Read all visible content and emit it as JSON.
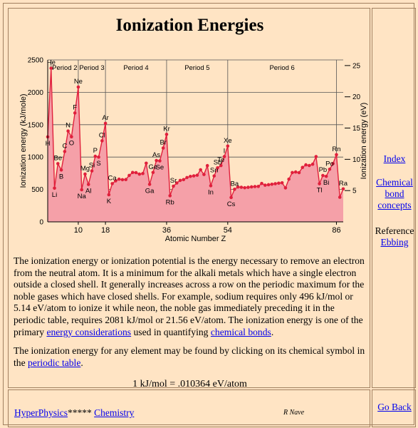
{
  "page": {
    "title": "Ionization Energies"
  },
  "chart_data": {
    "type": "line",
    "xlabel": "Atomic Number Z",
    "ylabel": "Ionization energy (kJ/mole)",
    "y2label": "Ionization energy (eV)",
    "xlim": [
      1,
      88
    ],
    "ylim": [
      0,
      2500
    ],
    "y2lim": [
      0,
      25.9
    ],
    "y_ticks": [
      0,
      500,
      1000,
      1500,
      2000,
      2500
    ],
    "y2_ticks": [
      5,
      10,
      15,
      20,
      25
    ],
    "x_ticks": [
      10,
      18,
      36,
      54,
      86
    ],
    "period_lines": [
      2,
      10,
      18,
      36,
      54,
      86
    ],
    "periods": [
      "Period 2",
      "Period 3",
      "Period 4",
      "Period 5",
      "Period 6"
    ],
    "fill_color": "#F5A0A8",
    "line_color": "#E0203C",
    "points": [
      [
        1,
        1312
      ],
      [
        2,
        2372
      ],
      [
        3,
        520
      ],
      [
        4,
        899
      ],
      [
        5,
        801
      ],
      [
        6,
        1086
      ],
      [
        7,
        1402
      ],
      [
        8,
        1314
      ],
      [
        9,
        1681
      ],
      [
        10,
        2081
      ],
      [
        11,
        496
      ],
      [
        12,
        738
      ],
      [
        13,
        578
      ],
      [
        14,
        786
      ],
      [
        15,
        1012
      ],
      [
        16,
        1000
      ],
      [
        17,
        1251
      ],
      [
        18,
        1521
      ],
      [
        19,
        419
      ],
      [
        20,
        590
      ],
      [
        21,
        633
      ],
      [
        22,
        659
      ],
      [
        23,
        651
      ],
      [
        24,
        653
      ],
      [
        25,
        717
      ],
      [
        26,
        762
      ],
      [
        27,
        760
      ],
      [
        28,
        737
      ],
      [
        29,
        746
      ],
      [
        30,
        906
      ],
      [
        31,
        579
      ],
      [
        32,
        762
      ],
      [
        33,
        947
      ],
      [
        34,
        941
      ],
      [
        35,
        1140
      ],
      [
        36,
        1351
      ],
      [
        37,
        403
      ],
      [
        38,
        550
      ],
      [
        39,
        600
      ],
      [
        40,
        640
      ],
      [
        41,
        652
      ],
      [
        42,
        684
      ],
      [
        43,
        702
      ],
      [
        44,
        710
      ],
      [
        45,
        720
      ],
      [
        46,
        804
      ],
      [
        47,
        731
      ],
      [
        48,
        868
      ],
      [
        49,
        558
      ],
      [
        50,
        709
      ],
      [
        51,
        834
      ],
      [
        52,
        869
      ],
      [
        53,
        1008
      ],
      [
        54,
        1170
      ],
      [
        55,
        376
      ],
      [
        56,
        503
      ],
      [
        57,
        538
      ],
      [
        58,
        534
      ],
      [
        59,
        527
      ],
      [
        60,
        533
      ],
      [
        61,
        540
      ],
      [
        62,
        545
      ],
      [
        63,
        547
      ],
      [
        64,
        593
      ],
      [
        65,
        566
      ],
      [
        66,
        573
      ],
      [
        67,
        581
      ],
      [
        68,
        589
      ],
      [
        69,
        597
      ],
      [
        70,
        603
      ],
      [
        71,
        524
      ],
      [
        72,
        659
      ],
      [
        73,
        761
      ],
      [
        74,
        770
      ],
      [
        75,
        760
      ],
      [
        76,
        840
      ],
      [
        77,
        880
      ],
      [
        78,
        870
      ],
      [
        79,
        890
      ],
      [
        80,
        1007
      ],
      [
        81,
        589
      ],
      [
        82,
        716
      ],
      [
        83,
        703
      ],
      [
        84,
        812
      ],
      [
        85,
        900
      ],
      [
        86,
        1037
      ],
      [
        87,
        380
      ],
      [
        88,
        509
      ]
    ],
    "labels": [
      {
        "s": "He",
        "z": 2
      },
      {
        "s": "H",
        "z": 1
      },
      {
        "s": "Li",
        "z": 3
      },
      {
        "s": "Be",
        "z": 4
      },
      {
        "s": "B",
        "z": 5
      },
      {
        "s": "C",
        "z": 6
      },
      {
        "s": "N",
        "z": 7
      },
      {
        "s": "O",
        "z": 8
      },
      {
        "s": "F",
        "z": 9
      },
      {
        "s": "Ne",
        "z": 10
      },
      {
        "s": "Na",
        "z": 11
      },
      {
        "s": "Mg",
        "z": 12
      },
      {
        "s": "Al",
        "z": 13
      },
      {
        "s": "Si",
        "z": 14
      },
      {
        "s": "P",
        "z": 15
      },
      {
        "s": "S",
        "z": 16
      },
      {
        "s": "Cl",
        "z": 17
      },
      {
        "s": "Ar",
        "z": 18
      },
      {
        "s": "K",
        "z": 19
      },
      {
        "s": "Ca",
        "z": 20
      },
      {
        "s": "Ga",
        "z": 31
      },
      {
        "s": "Ge",
        "z": 32
      },
      {
        "s": "As",
        "z": 33
      },
      {
        "s": "Se",
        "z": 34
      },
      {
        "s": "Br",
        "z": 35
      },
      {
        "s": "Kr",
        "z": 36
      },
      {
        "s": "Rb",
        "z": 37
      },
      {
        "s": "Sr",
        "z": 38
      },
      {
        "s": "In",
        "z": 49
      },
      {
        "s": "Sn",
        "z": 50
      },
      {
        "s": "Sb",
        "z": 51
      },
      {
        "s": "Te",
        "z": 52
      },
      {
        "s": "I",
        "z": 53
      },
      {
        "s": "Xe",
        "z": 54
      },
      {
        "s": "Cs",
        "z": 55
      },
      {
        "s": "Ba",
        "z": 56
      },
      {
        "s": "Tl",
        "z": 81
      },
      {
        "s": "Pb",
        "z": 82
      },
      {
        "s": "Bi",
        "z": 83
      },
      {
        "s": "Po",
        "z": 84
      },
      {
        "s": "Rn",
        "z": 86
      },
      {
        "s": "Ra",
        "z": 88
      }
    ]
  },
  "text": {
    "p1_a": "The ionization energy or ionization potential is the energy necessary to remove an electron from the neutral atom. It is a minimum for the alkali metals which have a single electron outside a closed shell. It generally increases across a row on the periodic maximum for the noble gases which have closed shells. For example, sodium requires only 496 kJ/mol or 5.14 eV/atom to ionize it while neon, the noble gas immediately preceding it in the periodic table, requires 2081 kJ/mol or 21.56 eV/atom. The ionization energy is one of the primary ",
    "link_energy": "energy considerations",
    "p1_b": " used in quantifying ",
    "link_bonds": "chemical bonds",
    "p1_c": ".",
    "p2_a": "The ionization energy for any element may be found by clicking on its chemical symbol in the ",
    "link_periodic": "periodic table",
    "p2_b": ".",
    "conversion": "1 kJ/mol = .010364 eV/atom"
  },
  "sidebar": {
    "index": "Index",
    "bond_concepts": "Chemical bond concepts",
    "reference_label": "Reference",
    "ebbing": "Ebbing"
  },
  "footer": {
    "hyperphysics": "HyperPhysics",
    "stars": "*****",
    "chemistry": "Chemistry",
    "author": "R Nave",
    "go_back": "Go Back"
  }
}
